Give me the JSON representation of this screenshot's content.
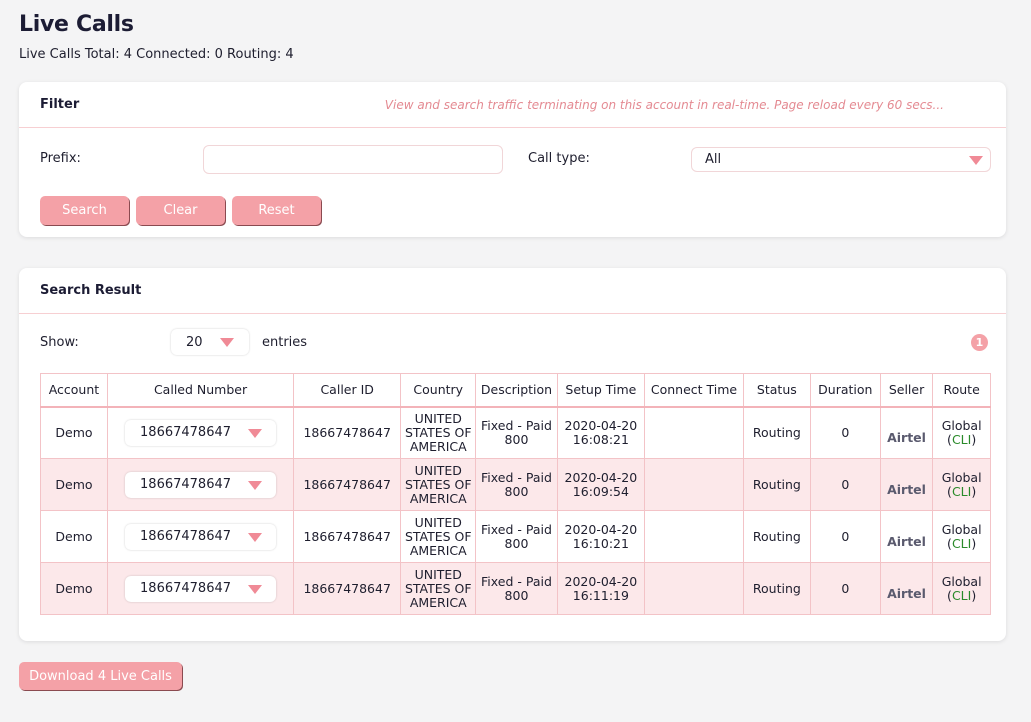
{
  "page": {
    "title": "Live Calls",
    "summary": "Live Calls Total: 4 Connected: 0 Routing: 4"
  },
  "filter": {
    "title": "Filter",
    "note": "View and search traffic terminating on this account in real-time. Page reload every 60 secs...",
    "prefix_label": "Prefix:",
    "prefix_value": "",
    "call_type_label": "Call type:",
    "call_type_value": "All",
    "search_label": "Search",
    "clear_label": "Clear",
    "reset_label": "Reset"
  },
  "results": {
    "title": "Search Result",
    "show_label": "Show:",
    "page_size": "20",
    "entries_label": "entries",
    "page_number": "1",
    "columns": [
      "Account",
      "Called Number",
      "Caller ID",
      "Country",
      "Description",
      "Setup Time",
      "Connect Time",
      "Status",
      "Duration",
      "Seller",
      "Route"
    ],
    "rows": [
      {
        "account": "Demo",
        "called": "18667478647",
        "caller_id": "18667478647",
        "country": "UNITED STATES OF AMERICA",
        "description": "Fixed - Paid 800",
        "setup_time": "2020-04-20 16:08:21",
        "connect_time": "",
        "status": "Routing",
        "duration": "0",
        "seller": "Airtel",
        "route": "Global",
        "route_tag": "CLI"
      },
      {
        "account": "Demo",
        "called": "18667478647",
        "caller_id": "18667478647",
        "country": "UNITED STATES OF AMERICA",
        "description": "Fixed - Paid 800",
        "setup_time": "2020-04-20 16:09:54",
        "connect_time": "",
        "status": "Routing",
        "duration": "0",
        "seller": "Airtel",
        "route": "Global",
        "route_tag": "CLI"
      },
      {
        "account": "Demo",
        "called": "18667478647",
        "caller_id": "18667478647",
        "country": "UNITED STATES OF AMERICA",
        "description": "Fixed - Paid 800",
        "setup_time": "2020-04-20 16:10:21",
        "connect_time": "",
        "status": "Routing",
        "duration": "0",
        "seller": "Airtel",
        "route": "Global",
        "route_tag": "CLI"
      },
      {
        "account": "Demo",
        "called": "18667478647",
        "caller_id": "18667478647",
        "country": "UNITED STATES OF AMERICA",
        "description": "Fixed - Paid 800",
        "setup_time": "2020-04-20 16:11:19",
        "connect_time": "",
        "status": "Routing",
        "duration": "0",
        "seller": "Airtel",
        "route": "Global",
        "route_tag": "CLI"
      }
    ]
  },
  "download": {
    "label": "Download 4 Live Calls"
  },
  "colors": {
    "accent": "#f4a1a7",
    "row_alt": "#fce8ea",
    "note": "#e48a92",
    "cli": "#2a8a2a"
  }
}
